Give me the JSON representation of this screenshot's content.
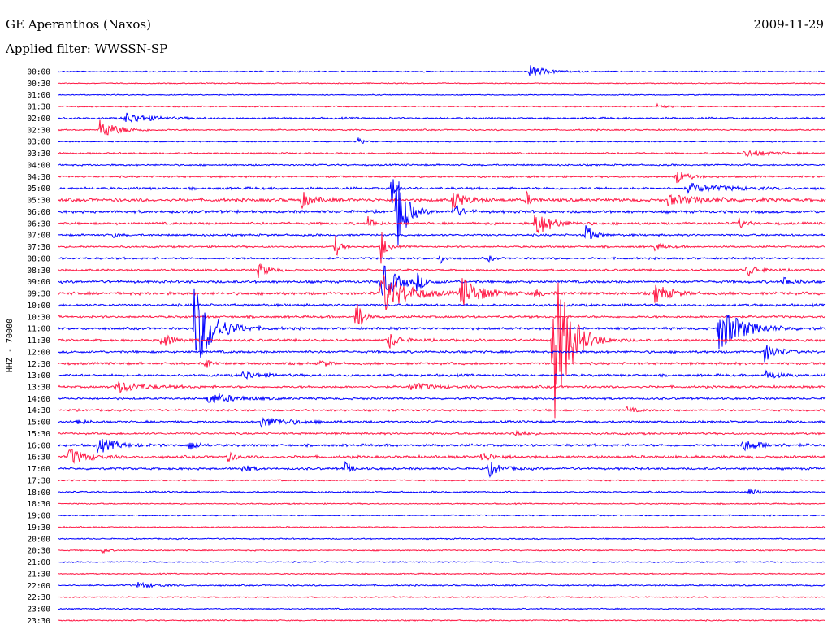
{
  "header": {
    "station": "GE Aperanthos (Naxos)",
    "date": "2009-11-29",
    "filter": "Applied filter: WWSSN-SP"
  },
  "chart_data": {
    "type": "line",
    "subtype": "helicorder",
    "ylabel": "HHZ - 70000",
    "row_times": [
      "00:00",
      "00:30",
      "01:00",
      "01:30",
      "02:00",
      "02:30",
      "03:00",
      "03:30",
      "04:00",
      "04:30",
      "05:00",
      "05:30",
      "06:00",
      "06:30",
      "07:00",
      "07:30",
      "08:00",
      "08:30",
      "09:00",
      "09:30",
      "10:00",
      "10:30",
      "11:00",
      "11:30",
      "12:00",
      "12:30",
      "13:00",
      "13:30",
      "14:00",
      "14:30",
      "15:00",
      "15:30",
      "16:00",
      "16:30",
      "17:00",
      "17:30",
      "18:00",
      "18:30",
      "19:00",
      "19:30",
      "20:00",
      "20:30",
      "21:00",
      "21:30",
      "22:00",
      "22:30",
      "23:00",
      "23:30"
    ],
    "trace_colors": [
      "#0000ff",
      "#ff1744"
    ],
    "x_range_minutes": [
      0,
      30
    ],
    "noise_level": [
      0.6,
      0.5,
      0.5,
      0.6,
      0.9,
      0.7,
      0.6,
      0.8,
      0.8,
      0.9,
      1.2,
      1.6,
      1.4,
      1.2,
      1.0,
      0.9,
      1.0,
      1.0,
      1.3,
      1.4,
      1.2,
      1.1,
      1.2,
      1.2,
      1.2,
      1.2,
      1.2,
      1.1,
      1.0,
      1.0,
      1.1,
      1.0,
      1.2,
      1.3,
      1.1,
      0.7,
      0.8,
      0.6,
      0.6,
      0.6,
      0.6,
      0.6,
      0.6,
      0.6,
      0.7,
      0.6,
      0.6,
      0.6
    ],
    "events": [
      {
        "row": 0,
        "minute": 18.4,
        "amp": 8,
        "dur": 1.0
      },
      {
        "row": 3,
        "minute": 23.4,
        "amp": 3,
        "dur": 0.6
      },
      {
        "row": 4,
        "minute": 2.6,
        "amp": 7,
        "dur": 1.5
      },
      {
        "row": 5,
        "minute": 1.6,
        "amp": 12,
        "dur": 1.2
      },
      {
        "row": 6,
        "minute": 11.7,
        "amp": 5,
        "dur": 0.3
      },
      {
        "row": 7,
        "minute": 26.8,
        "amp": 5,
        "dur": 1.5
      },
      {
        "row": 9,
        "minute": 24.1,
        "amp": 10,
        "dur": 0.7
      },
      {
        "row": 10,
        "minute": 13.0,
        "amp": 34,
        "dur": 0.2
      },
      {
        "row": 10,
        "minute": 24.6,
        "amp": 6,
        "dur": 2.2
      },
      {
        "row": 11,
        "minute": 9.5,
        "amp": 10,
        "dur": 0.7
      },
      {
        "row": 11,
        "minute": 15.4,
        "amp": 12,
        "dur": 0.8
      },
      {
        "row": 11,
        "minute": 18.3,
        "amp": 10,
        "dur": 0.3
      },
      {
        "row": 11,
        "minute": 23.8,
        "amp": 6,
        "dur": 2.5
      },
      {
        "row": 12,
        "minute": 13.2,
        "amp": 60,
        "dur": 0.6
      },
      {
        "row": 12,
        "minute": 15.4,
        "amp": 12,
        "dur": 0.5
      },
      {
        "row": 13,
        "minute": 12.1,
        "amp": 8,
        "dur": 0.4
      },
      {
        "row": 13,
        "minute": 18.6,
        "amp": 18,
        "dur": 1.0
      },
      {
        "row": 13,
        "minute": 26.6,
        "amp": 7,
        "dur": 0.4
      },
      {
        "row": 14,
        "minute": 2.1,
        "amp": 4,
        "dur": 0.3
      },
      {
        "row": 14,
        "minute": 20.6,
        "amp": 15,
        "dur": 0.5
      },
      {
        "row": 15,
        "minute": 10.8,
        "amp": 17,
        "dur": 0.3
      },
      {
        "row": 15,
        "minute": 12.6,
        "amp": 25,
        "dur": 0.3
      },
      {
        "row": 15,
        "minute": 23.3,
        "amp": 5,
        "dur": 0.6
      },
      {
        "row": 16,
        "minute": 14.9,
        "amp": 8,
        "dur": 0.3
      },
      {
        "row": 16,
        "minute": 16.8,
        "amp": 4,
        "dur": 0.3
      },
      {
        "row": 17,
        "minute": 7.8,
        "amp": 10,
        "dur": 0.6
      },
      {
        "row": 17,
        "minute": 26.9,
        "amp": 10,
        "dur": 0.6
      },
      {
        "row": 18,
        "minute": 12.6,
        "amp": 25,
        "dur": 1.0
      },
      {
        "row": 18,
        "minute": 14.0,
        "amp": 10,
        "dur": 0.5
      },
      {
        "row": 18,
        "minute": 28.3,
        "amp": 8,
        "dur": 0.6
      },
      {
        "row": 19,
        "minute": 12.6,
        "amp": 28,
        "dur": 1.5
      },
      {
        "row": 19,
        "minute": 15.7,
        "amp": 22,
        "dur": 1.2
      },
      {
        "row": 19,
        "minute": 18.6,
        "amp": 5,
        "dur": 0.6
      },
      {
        "row": 19,
        "minute": 23.3,
        "amp": 12,
        "dur": 1.0
      },
      {
        "row": 21,
        "minute": 11.6,
        "amp": 46,
        "dur": 0.3
      },
      {
        "row": 22,
        "minute": 5.3,
        "amp": 55,
        "dur": 1.2
      },
      {
        "row": 22,
        "minute": 25.8,
        "amp": 30,
        "dur": 1.5
      },
      {
        "row": 23,
        "minute": 4.0,
        "amp": 10,
        "dur": 0.8
      },
      {
        "row": 23,
        "minute": 12.9,
        "amp": 12,
        "dur": 0.6
      },
      {
        "row": 23,
        "minute": 19.3,
        "amp": 120,
        "dur": 1.0
      },
      {
        "row": 24,
        "minute": 27.6,
        "amp": 12,
        "dur": 0.8
      },
      {
        "row": 25,
        "minute": 5.7,
        "amp": 12,
        "dur": 0.3
      },
      {
        "row": 25,
        "minute": 10.2,
        "amp": 5,
        "dur": 0.5
      },
      {
        "row": 26,
        "minute": 7.2,
        "amp": 6,
        "dur": 1.0
      },
      {
        "row": 26,
        "minute": 27.6,
        "amp": 6,
        "dur": 0.8
      },
      {
        "row": 27,
        "minute": 2.2,
        "amp": 7,
        "dur": 1.8
      },
      {
        "row": 27,
        "minute": 13.7,
        "amp": 5,
        "dur": 1.5
      },
      {
        "row": 28,
        "minute": 5.8,
        "amp": 7,
        "dur": 1.8
      },
      {
        "row": 29,
        "minute": 22.2,
        "amp": 4,
        "dur": 0.6
      },
      {
        "row": 30,
        "minute": 0.7,
        "amp": 6,
        "dur": 0.4
      },
      {
        "row": 30,
        "minute": 7.9,
        "amp": 6,
        "dur": 1.8
      },
      {
        "row": 31,
        "minute": 17.7,
        "amp": 6,
        "dur": 0.6
      },
      {
        "row": 32,
        "minute": 1.5,
        "amp": 10,
        "dur": 1.2
      },
      {
        "row": 32,
        "minute": 5.1,
        "amp": 10,
        "dur": 0.4
      },
      {
        "row": 32,
        "minute": 26.7,
        "amp": 7,
        "dur": 1.5
      },
      {
        "row": 33,
        "minute": 0.4,
        "amp": 12,
        "dur": 1.0
      },
      {
        "row": 33,
        "minute": 6.6,
        "amp": 6,
        "dur": 0.5
      },
      {
        "row": 33,
        "minute": 16.5,
        "amp": 6,
        "dur": 0.8
      },
      {
        "row": 34,
        "minute": 7.2,
        "amp": 8,
        "dur": 0.4
      },
      {
        "row": 34,
        "minute": 11.2,
        "amp": 8,
        "dur": 0.4
      },
      {
        "row": 34,
        "minute": 16.8,
        "amp": 10,
        "dur": 0.8
      },
      {
        "row": 36,
        "minute": 27.0,
        "amp": 4,
        "dur": 0.6
      },
      {
        "row": 41,
        "minute": 1.7,
        "amp": 4,
        "dur": 0.3
      },
      {
        "row": 44,
        "minute": 3.1,
        "amp": 4,
        "dur": 1.0
      }
    ]
  }
}
